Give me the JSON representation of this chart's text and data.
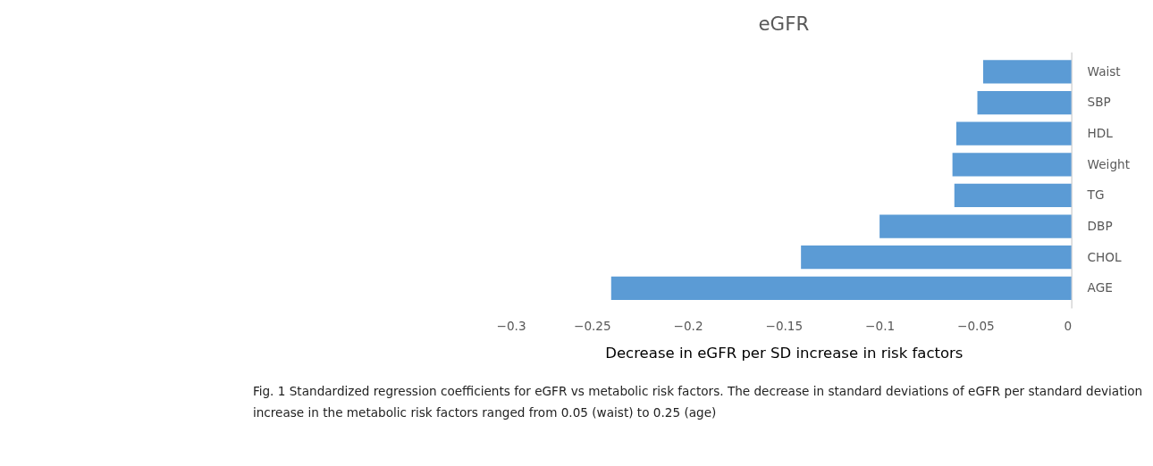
{
  "chart_data": {
    "type": "bar",
    "orientation": "horizontal",
    "title": "eGFR",
    "xlabel": "Decrease in eGFR per SD increase in risk factors",
    "categories": [
      "Waist",
      "SBP",
      "HDL",
      "Weight",
      "TG",
      "DBP",
      "CHOL",
      "AGE"
    ],
    "values": [
      -0.046,
      -0.049,
      -0.06,
      -0.062,
      -0.061,
      -0.1,
      -0.141,
      -0.24
    ],
    "color": "#5b9bd5",
    "xlim": [
      -0.3,
      0
    ],
    "xticks": [
      -0.3,
      -0.25,
      -0.2,
      -0.15,
      -0.1,
      -0.05,
      0
    ],
    "grid": false,
    "annotations": [
      "Fig. 1 Standardized regression coefficients for eGFR vs metabolic risk factors. The decrease in standard deviations of eGFR per standard deviation increase in the metabolic risk factors ranged from 0.05 (waist) to 0.25 (age)"
    ]
  }
}
